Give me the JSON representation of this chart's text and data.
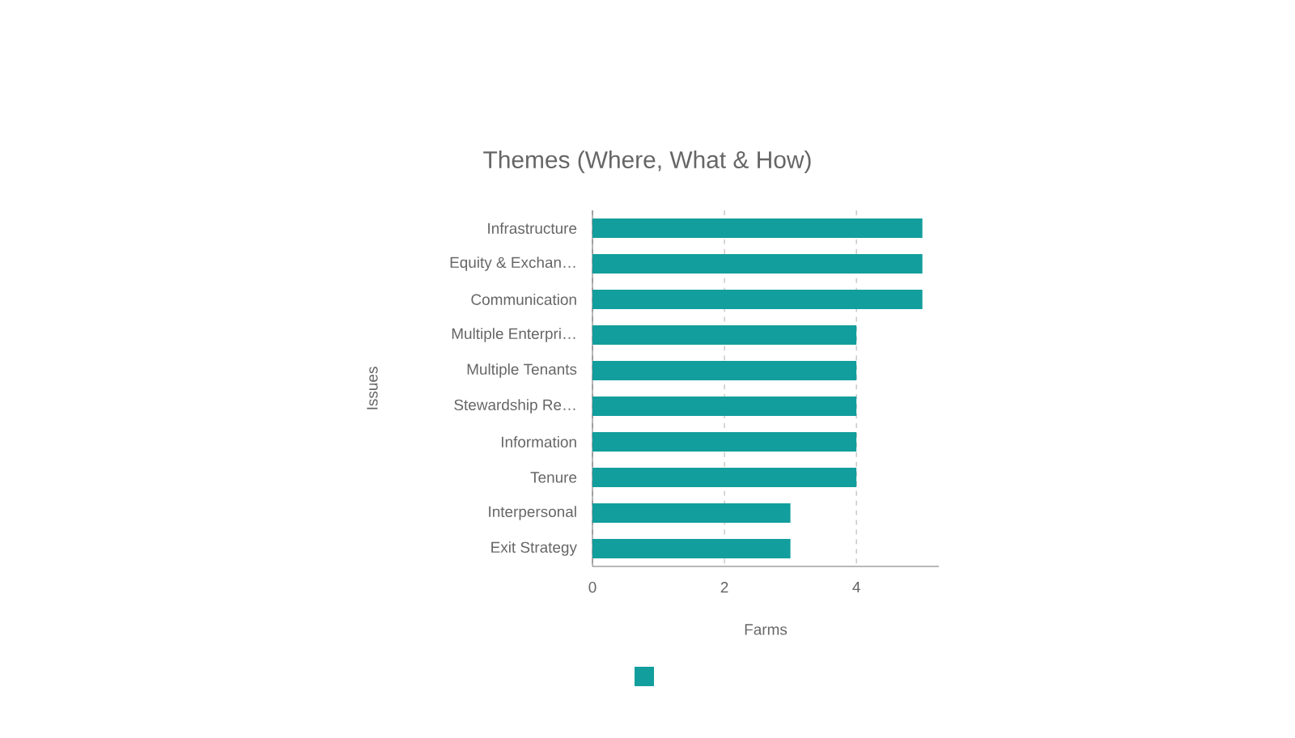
{
  "chart_data": {
    "type": "bar",
    "orientation": "horizontal",
    "title": "Themes (Where, What & How)",
    "xlabel": "Farms",
    "ylabel": "Issues",
    "categories": [
      "Infrastructure",
      "Equity & Exchan…",
      "Communication",
      "Multiple Enterpri…",
      "Multiple Tenants",
      "Stewardship Re…",
      "Information",
      "Tenure",
      "Interpersonal",
      "Exit Strategy"
    ],
    "values": [
      5,
      5,
      5,
      4,
      4,
      4,
      4,
      4,
      3,
      3
    ],
    "color": "#129e9c",
    "xlim": [
      0,
      5.25
    ],
    "xticks": [
      0,
      2,
      4
    ],
    "grid": "x"
  }
}
